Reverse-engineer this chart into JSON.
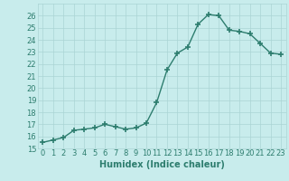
{
  "xlabel": "Humidex (Indice chaleur)",
  "x": [
    0,
    1,
    2,
    3,
    4,
    5,
    6,
    7,
    8,
    9,
    10,
    11,
    12,
    13,
    14,
    15,
    16,
    17,
    18,
    19,
    20,
    21,
    22,
    23
  ],
  "y": [
    15.5,
    15.7,
    15.9,
    16.5,
    16.6,
    16.7,
    17.0,
    16.8,
    16.6,
    16.7,
    17.1,
    18.8,
    21.5,
    22.9,
    23.4,
    25.3,
    26.1,
    26.0,
    24.8,
    24.7,
    24.5,
    23.7,
    22.9,
    22.8
  ],
  "line_color": "#2d7d6e",
  "marker": "+",
  "marker_size": 4,
  "background_color": "#c8ecec",
  "grid_color": "#aad4d4",
  "ylim": [
    15,
    27
  ],
  "xlim": [
    -0.5,
    23.5
  ],
  "yticks": [
    15,
    16,
    17,
    18,
    19,
    20,
    21,
    22,
    23,
    24,
    25,
    26
  ],
  "xticks": [
    0,
    1,
    2,
    3,
    4,
    5,
    6,
    7,
    8,
    9,
    10,
    11,
    12,
    13,
    14,
    15,
    16,
    17,
    18,
    19,
    20,
    21,
    22,
    23
  ],
  "tick_label_fontsize": 6,
  "xlabel_fontsize": 7,
  "lw": 1.0
}
